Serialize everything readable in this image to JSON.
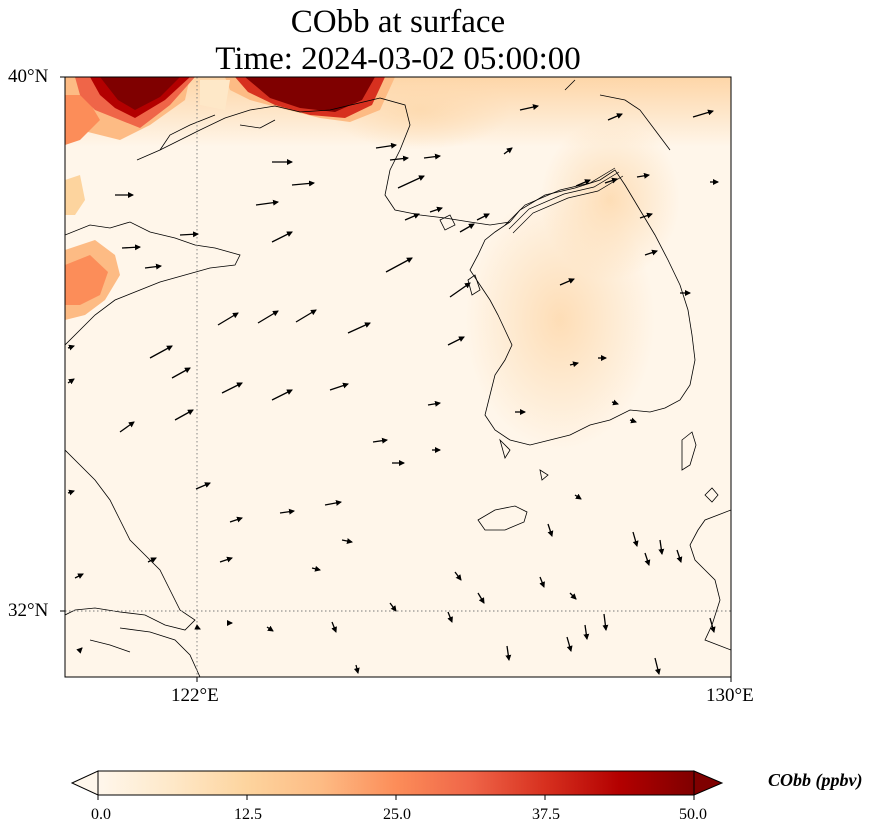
{
  "title": {
    "line1": "CObb at surface",
    "line2": "Time: 2024-03-02 05:00:00"
  },
  "map": {
    "lat_labels": [
      "40°N",
      "32°N"
    ],
    "lon_labels": [
      "122°E",
      "130°E"
    ],
    "lon_range": [
      120,
      130
    ],
    "lat_range": [
      31,
      40
    ],
    "gridlines": "dotted"
  },
  "colorbar": {
    "label": "CObb (ppbv)",
    "ticks": [
      "0.0",
      "12.5",
      "25.0",
      "37.5",
      "50.0"
    ],
    "range": [
      0,
      50
    ],
    "colormap": "OrRd",
    "colors": [
      "#fff7ec",
      "#fee8c8",
      "#fdd49e",
      "#fdbb84",
      "#fc8d59",
      "#ef6548",
      "#d7301f",
      "#b30000",
      "#7f0000"
    ]
  }
}
